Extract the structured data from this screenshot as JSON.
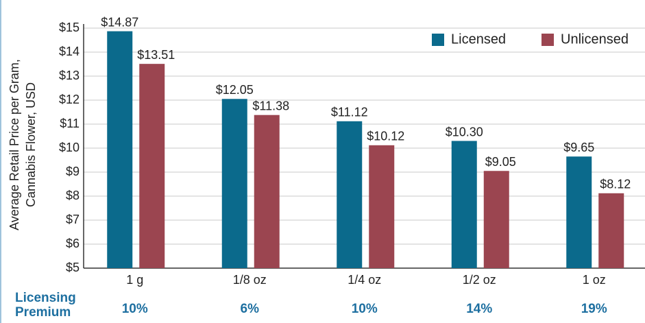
{
  "chart_data": {
    "type": "bar",
    "y_label": [
      "Average Retail Price per Gram,",
      "Cannabis Flower, USD"
    ],
    "categories": [
      "1 g",
      "1/8 oz",
      "1/4 oz",
      "1/2 oz",
      "1 oz"
    ],
    "series": [
      {
        "name": "Licensed",
        "color": "#0b6a8c",
        "values": [
          14.87,
          12.05,
          11.12,
          10.3,
          9.65
        ],
        "value_labels": [
          "$14.87",
          "$12.05",
          "$11.12",
          "$10.30",
          "$9.65"
        ]
      },
      {
        "name": "Unlicensed",
        "color": "#9b4550",
        "values": [
          13.51,
          11.38,
          10.12,
          9.05,
          8.12
        ],
        "value_labels": [
          "$13.51",
          "$11.38",
          "$10.12",
          "$9.05",
          "$8.12"
        ]
      }
    ],
    "ylim": [
      5,
      15
    ],
    "yticks": [
      {
        "value": 5,
        "label": "$5"
      },
      {
        "value": 6,
        "label": "$6"
      },
      {
        "value": 7,
        "label": "$7"
      },
      {
        "value": 8,
        "label": "$8"
      },
      {
        "value": 9,
        "label": "$9"
      },
      {
        "value": 10,
        "label": "$10"
      },
      {
        "value": 11,
        "label": "$11"
      },
      {
        "value": 12,
        "label": "$12"
      },
      {
        "value": 13,
        "label": "$13"
      },
      {
        "value": 14,
        "label": "$14"
      },
      {
        "value": 15,
        "label": "$15"
      }
    ],
    "grid": true,
    "legend": "upper right",
    "licensing_premium": {
      "label": "Licensing Premium",
      "values": [
        "10%",
        "6%",
        "10%",
        "14%",
        "19%"
      ]
    }
  }
}
